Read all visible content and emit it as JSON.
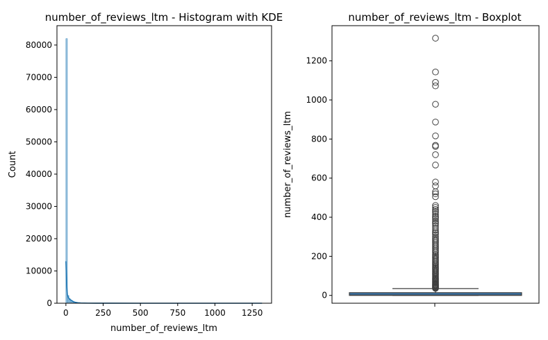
{
  "chart_data": [
    {
      "type": "histogram",
      "title": "number_of_reviews_ltm - Histogram with KDE",
      "xlabel": "number_of_reviews_ltm",
      "ylabel": "Count",
      "xlim": [
        -60,
        1380
      ],
      "ylim": [
        0,
        86000
      ],
      "xticks": [
        0,
        250,
        500,
        750,
        1000,
        1250
      ],
      "yticks": [
        0,
        10000,
        20000,
        30000,
        40000,
        50000,
        60000,
        70000,
        80000
      ],
      "bins": [
        {
          "x0": 0,
          "x1": 10,
          "count": 82000
        },
        {
          "x0": 10,
          "x1": 20,
          "count": 2400
        },
        {
          "x0": 20,
          "x1": 30,
          "count": 1400
        },
        {
          "x0": 30,
          "x1": 40,
          "count": 900
        },
        {
          "x0": 40,
          "x1": 50,
          "count": 600
        },
        {
          "x0": 50,
          "x1": 60,
          "count": 350
        },
        {
          "x0": 60,
          "x1": 80,
          "count": 200
        },
        {
          "x0": 80,
          "x1": 100,
          "count": 100
        },
        {
          "x0": 100,
          "x1": 150,
          "count": 50
        }
      ],
      "kde": {
        "x": [
          0,
          5,
          10,
          15,
          20,
          30,
          40,
          50,
          60,
          80,
          100,
          150,
          200,
          300,
          500,
          750,
          1000,
          1250,
          1316
        ],
        "y": [
          13000,
          5500,
          2600,
          2000,
          1500,
          1100,
          800,
          500,
          300,
          150,
          60,
          25,
          10,
          5,
          3,
          2,
          1,
          1,
          0
        ]
      },
      "bar_color": "#1f77b4",
      "line_color": "#1f77b4"
    },
    {
      "type": "boxplot",
      "title": "number_of_reviews_ltm - Boxplot",
      "ylabel": "number_of_reviews_ltm",
      "ylim": [
        -40,
        1380
      ],
      "yticks": [
        0,
        200,
        400,
        600,
        800,
        1000,
        1200
      ],
      "box": {
        "whisker_low": 0,
        "q1": 0,
        "median": 2,
        "q3": 14,
        "whisker_high": 35
      },
      "outliers": [
        1316,
        1143,
        1090,
        1072,
        978,
        887,
        816,
        768,
        762,
        720,
        667,
        580,
        560,
        530,
        520,
        505,
        460,
        450,
        440,
        432,
        425,
        415,
        405,
        398,
        390,
        380,
        372,
        365,
        355,
        345,
        335,
        325,
        318,
        310,
        300,
        292,
        285,
        278,
        270,
        262,
        255,
        248,
        240,
        232,
        225,
        218,
        210,
        204,
        198,
        192,
        186,
        180,
        174,
        168,
        162,
        156,
        150,
        145,
        140,
        135,
        130,
        125,
        120,
        115,
        110,
        105,
        100,
        95,
        90,
        86,
        82,
        78,
        74,
        70,
        66,
        62,
        58,
        55,
        52,
        49,
        46,
        43,
        40,
        38,
        36
      ],
      "box_color": "#3a75a8",
      "edge_color": "#3f3f3f"
    }
  ]
}
